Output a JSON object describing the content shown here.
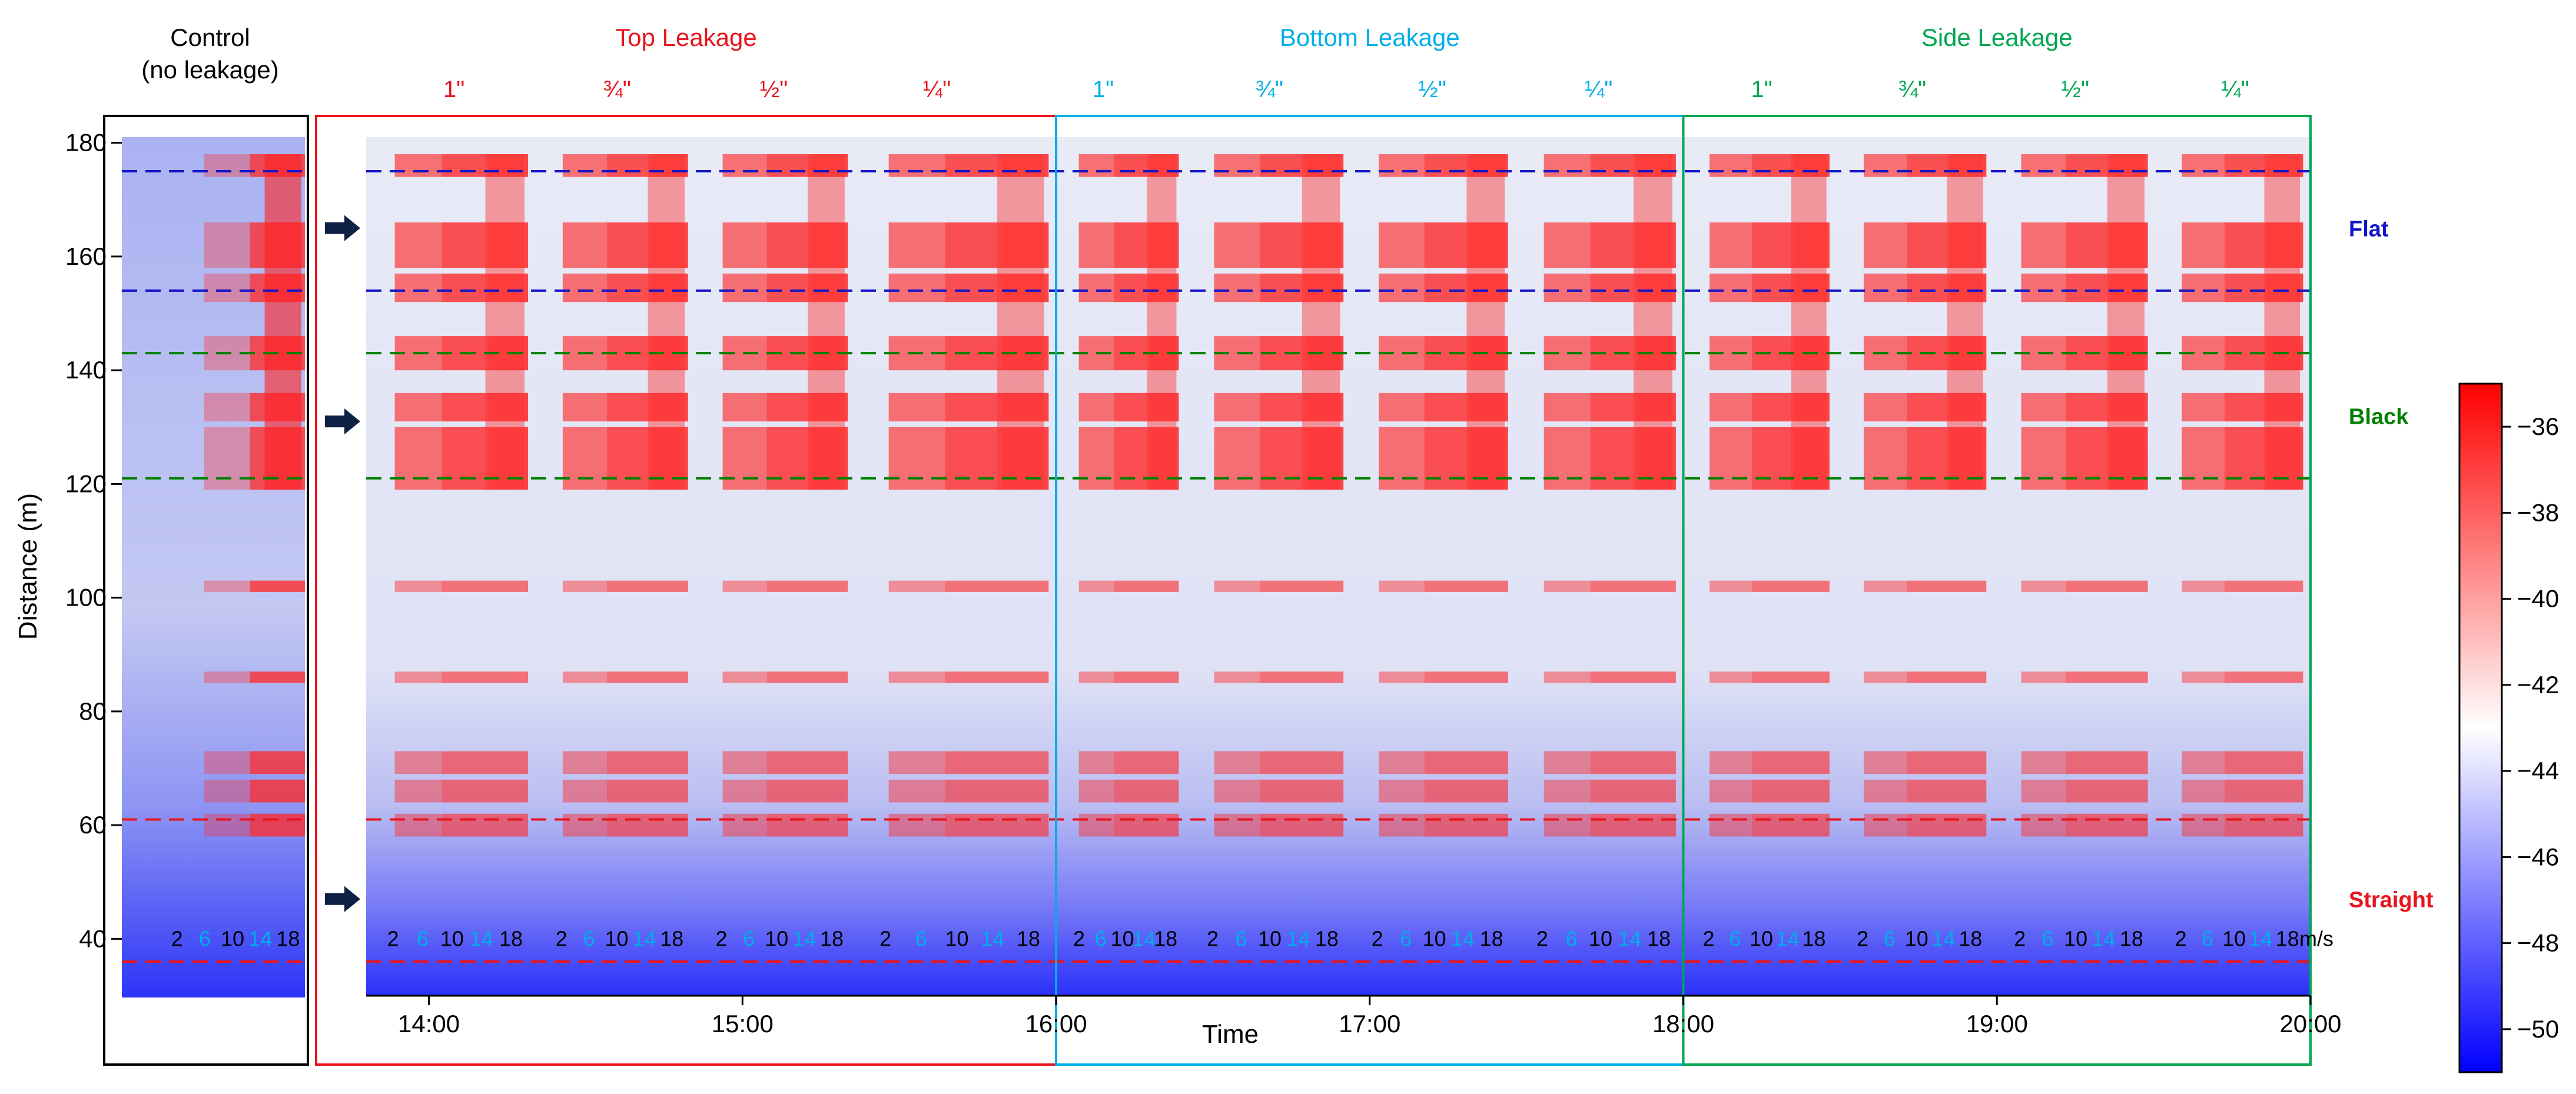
{
  "chart_data": {
    "type": "heatmap",
    "xlabel": "Time",
    "ylabel": "Distance (m)",
    "ylim": [
      30,
      181
    ],
    "y_ticks": [
      40,
      60,
      80,
      100,
      120,
      140,
      160,
      180
    ],
    "x_ticks": [
      "14:00",
      "15:00",
      "16:00",
      "17:00",
      "18:00",
      "19:00",
      "20:00"
    ],
    "x_tick_hours": [
      14,
      15,
      16,
      17,
      18,
      19,
      20
    ],
    "xlim_hours": [
      13.8,
      20.0
    ],
    "control_title": [
      "Control",
      "(no leakage)"
    ],
    "groups": [
      {
        "label": "Top Leakage",
        "color": "#e8141e",
        "start": 13.8,
        "end": 16.0,
        "sizes": [
          {
            "label": "1\"",
            "at": 14.08
          },
          {
            "label": "¾\"",
            "at": 14.6
          },
          {
            "label": "½\"",
            "at": 15.1
          },
          {
            "label": "¼\"",
            "at": 15.62
          }
        ]
      },
      {
        "label": "Bottom Leakage",
        "color": "#00aee8",
        "start": 16.0,
        "end": 18.0,
        "sizes": [
          {
            "label": "1\"",
            "at": 16.15
          },
          {
            "label": "¾\"",
            "at": 16.68
          },
          {
            "label": "½\"",
            "at": 17.2
          },
          {
            "label": "¼\"",
            "at": 17.73
          }
        ]
      },
      {
        "label": "Side Leakage",
        "color": "#00a651",
        "start": 18.0,
        "end": 20.0,
        "sizes": [
          {
            "label": "1\"",
            "at": 18.25
          },
          {
            "label": "¾\"",
            "at": 18.73
          },
          {
            "label": "½\"",
            "at": 19.25
          },
          {
            "label": "¼\"",
            "at": 19.76
          }
        ]
      }
    ],
    "reference_lines": [
      {
        "pattern": "Flat",
        "color": "#1414c8",
        "distances": [
          154,
          175
        ]
      },
      {
        "pattern": "Black",
        "color": "#008000",
        "distances": [
          121,
          143
        ]
      },
      {
        "pattern": "Straight",
        "color": "#e8141e",
        "distances": [
          36,
          61
        ]
      }
    ],
    "arrow_distances": [
      165,
      131,
      47
    ],
    "wind_speeds": [
      "2",
      "6",
      "10",
      "14",
      "18"
    ],
    "wind_speed_colors": [
      "#000000",
      "#00aee8",
      "#000000",
      "#00aee8",
      "#000000"
    ],
    "speed_unit": "m/s",
    "hot_bands_m": [
      [
        174,
        178
      ],
      [
        158,
        166
      ],
      [
        152,
        157
      ],
      [
        140,
        146
      ],
      [
        131,
        136
      ],
      [
        122,
        130
      ],
      [
        119,
        122
      ],
      [
        101,
        103
      ],
      [
        85,
        87
      ],
      [
        69,
        73
      ],
      [
        64,
        68
      ],
      [
        58,
        62
      ]
    ],
    "colorbar": {
      "min": -51,
      "max": -35,
      "ticks": [
        -36,
        -38,
        -40,
        -42,
        -44,
        -46,
        -48,
        -50
      ],
      "colors": [
        "#0000ff",
        "#ffffff",
        "#ff0000"
      ]
    }
  }
}
